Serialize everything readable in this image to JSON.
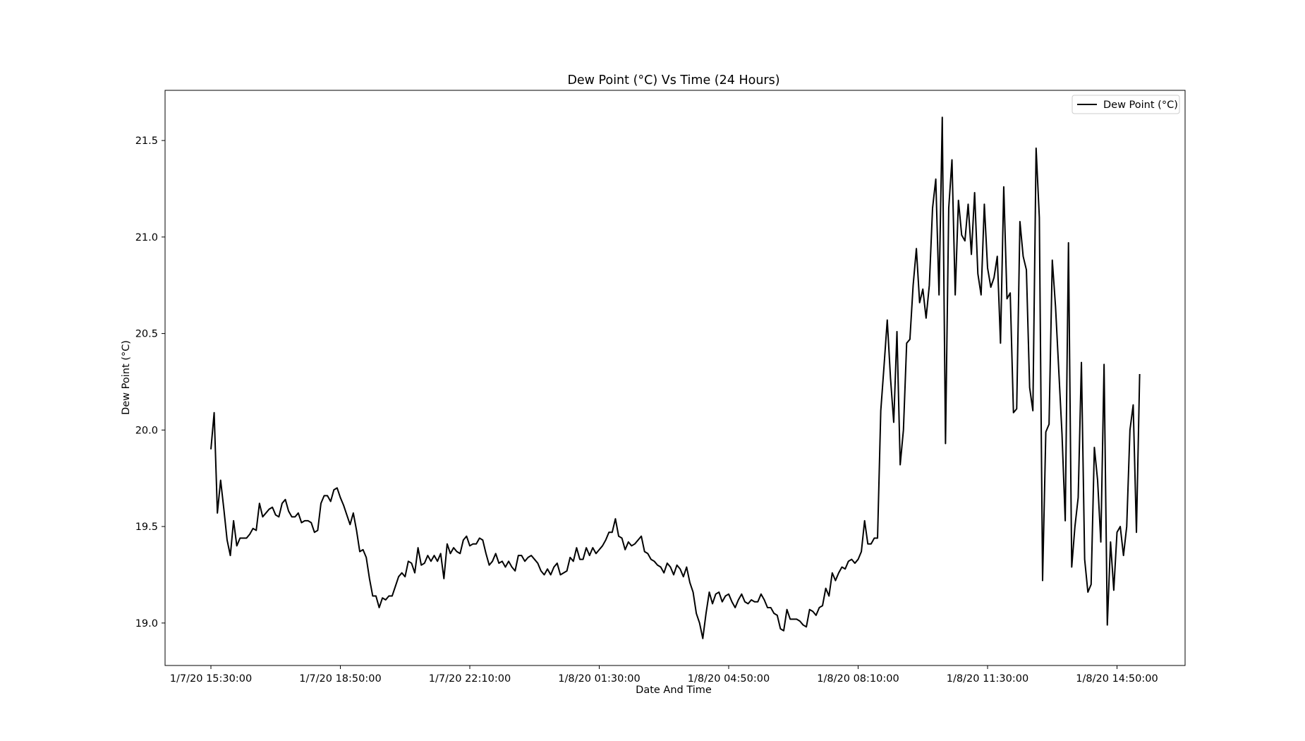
{
  "chart_data": {
    "type": "line",
    "title": "Dew Point (°C) Vs Time (24 Hours)",
    "xlabel": "Date And Time",
    "ylabel": "Dew Point (°C)",
    "x_ticks": [
      "1/7/20 15:30:00",
      "1/7/20 18:50:00",
      "1/7/20 22:10:00",
      "1/8/20 01:30:00",
      "1/8/20 04:50:00",
      "1/8/20 08:10:00",
      "1/8/20 11:30:00",
      "1/8/20 14:50:00"
    ],
    "y_ticks": [
      "19.0",
      "19.5",
      "20.0",
      "20.5",
      "21.0",
      "21.5"
    ],
    "ylim": [
      18.78,
      21.76
    ],
    "x_interval_minutes": 5,
    "x_start": "1/7/20 15:30:00",
    "legend": {
      "position": "upper right"
    },
    "grid": false,
    "series": [
      {
        "name": "Dew Point (°C)",
        "color": "#000000",
        "values": [
          19.9,
          20.09,
          19.57,
          19.74,
          19.59,
          19.43,
          19.35,
          19.53,
          19.4,
          19.44,
          19.44,
          19.44,
          19.46,
          19.49,
          19.48,
          19.62,
          19.55,
          19.57,
          19.59,
          19.6,
          19.56,
          19.55,
          19.62,
          19.64,
          19.58,
          19.55,
          19.55,
          19.57,
          19.52,
          19.53,
          19.53,
          19.52,
          19.47,
          19.48,
          19.62,
          19.66,
          19.66,
          19.63,
          19.69,
          19.7,
          19.65,
          19.61,
          19.56,
          19.51,
          19.57,
          19.48,
          19.37,
          19.38,
          19.34,
          19.23,
          19.14,
          19.14,
          19.08,
          19.13,
          19.12,
          19.14,
          19.14,
          19.19,
          19.24,
          19.26,
          19.24,
          19.32,
          19.31,
          19.26,
          19.39,
          19.3,
          19.31,
          19.35,
          19.32,
          19.35,
          19.32,
          19.36,
          19.23,
          19.41,
          19.36,
          19.39,
          19.37,
          19.36,
          19.43,
          19.45,
          19.4,
          19.41,
          19.41,
          19.44,
          19.43,
          19.36,
          19.3,
          19.32,
          19.36,
          19.31,
          19.32,
          19.29,
          19.32,
          19.29,
          19.27,
          19.35,
          19.35,
          19.32,
          19.34,
          19.35,
          19.33,
          19.31,
          19.27,
          19.25,
          19.28,
          19.25,
          19.29,
          19.31,
          19.25,
          19.26,
          19.27,
          19.34,
          19.32,
          19.39,
          19.33,
          19.33,
          19.39,
          19.35,
          19.39,
          19.36,
          19.38,
          19.4,
          19.43,
          19.47,
          19.47,
          19.54,
          19.45,
          19.44,
          19.38,
          19.42,
          19.4,
          19.41,
          19.43,
          19.45,
          19.37,
          19.36,
          19.33,
          19.32,
          19.3,
          19.29,
          19.26,
          19.31,
          19.29,
          19.25,
          19.3,
          19.28,
          19.24,
          19.29,
          19.21,
          19.16,
          19.05,
          19.0,
          18.92,
          19.05,
          19.16,
          19.1,
          19.15,
          19.16,
          19.11,
          19.14,
          19.15,
          19.11,
          19.08,
          19.12,
          19.15,
          19.11,
          19.1,
          19.12,
          19.11,
          19.11,
          19.15,
          19.12,
          19.08,
          19.08,
          19.05,
          19.04,
          18.97,
          18.96,
          19.07,
          19.02,
          19.02,
          19.02,
          19.01,
          18.99,
          18.98,
          19.07,
          19.06,
          19.04,
          19.08,
          19.09,
          19.18,
          19.14,
          19.26,
          19.22,
          19.26,
          19.29,
          19.28,
          19.32,
          19.33,
          19.31,
          19.33,
          19.37,
          19.53,
          19.41,
          19.41,
          19.44,
          19.44,
          20.1,
          20.33,
          20.57,
          20.27,
          20.04,
          20.51,
          19.82,
          20.0,
          20.45,
          20.47,
          20.75,
          20.94,
          20.66,
          20.73,
          20.58,
          20.75,
          21.15,
          21.3,
          20.7,
          21.62,
          19.93,
          21.15,
          21.4,
          20.7,
          21.19,
          21.01,
          20.98,
          21.17,
          20.91,
          21.23,
          20.81,
          20.7,
          21.17,
          20.84,
          20.74,
          20.79,
          20.9,
          20.45,
          21.26,
          20.68,
          20.71,
          20.09,
          20.11,
          21.08,
          20.9,
          20.83,
          20.22,
          20.1,
          21.46,
          21.1,
          19.22,
          19.99,
          20.03,
          20.88,
          20.64,
          20.31,
          19.98,
          19.53,
          20.97,
          19.29,
          19.5,
          19.65,
          20.35,
          19.33,
          19.16,
          19.2,
          19.91,
          19.74,
          19.42,
          20.34,
          18.99,
          19.42,
          19.17,
          19.47,
          19.5,
          19.35,
          19.5,
          20.0,
          20.13,
          19.47,
          20.29
        ]
      }
    ]
  }
}
